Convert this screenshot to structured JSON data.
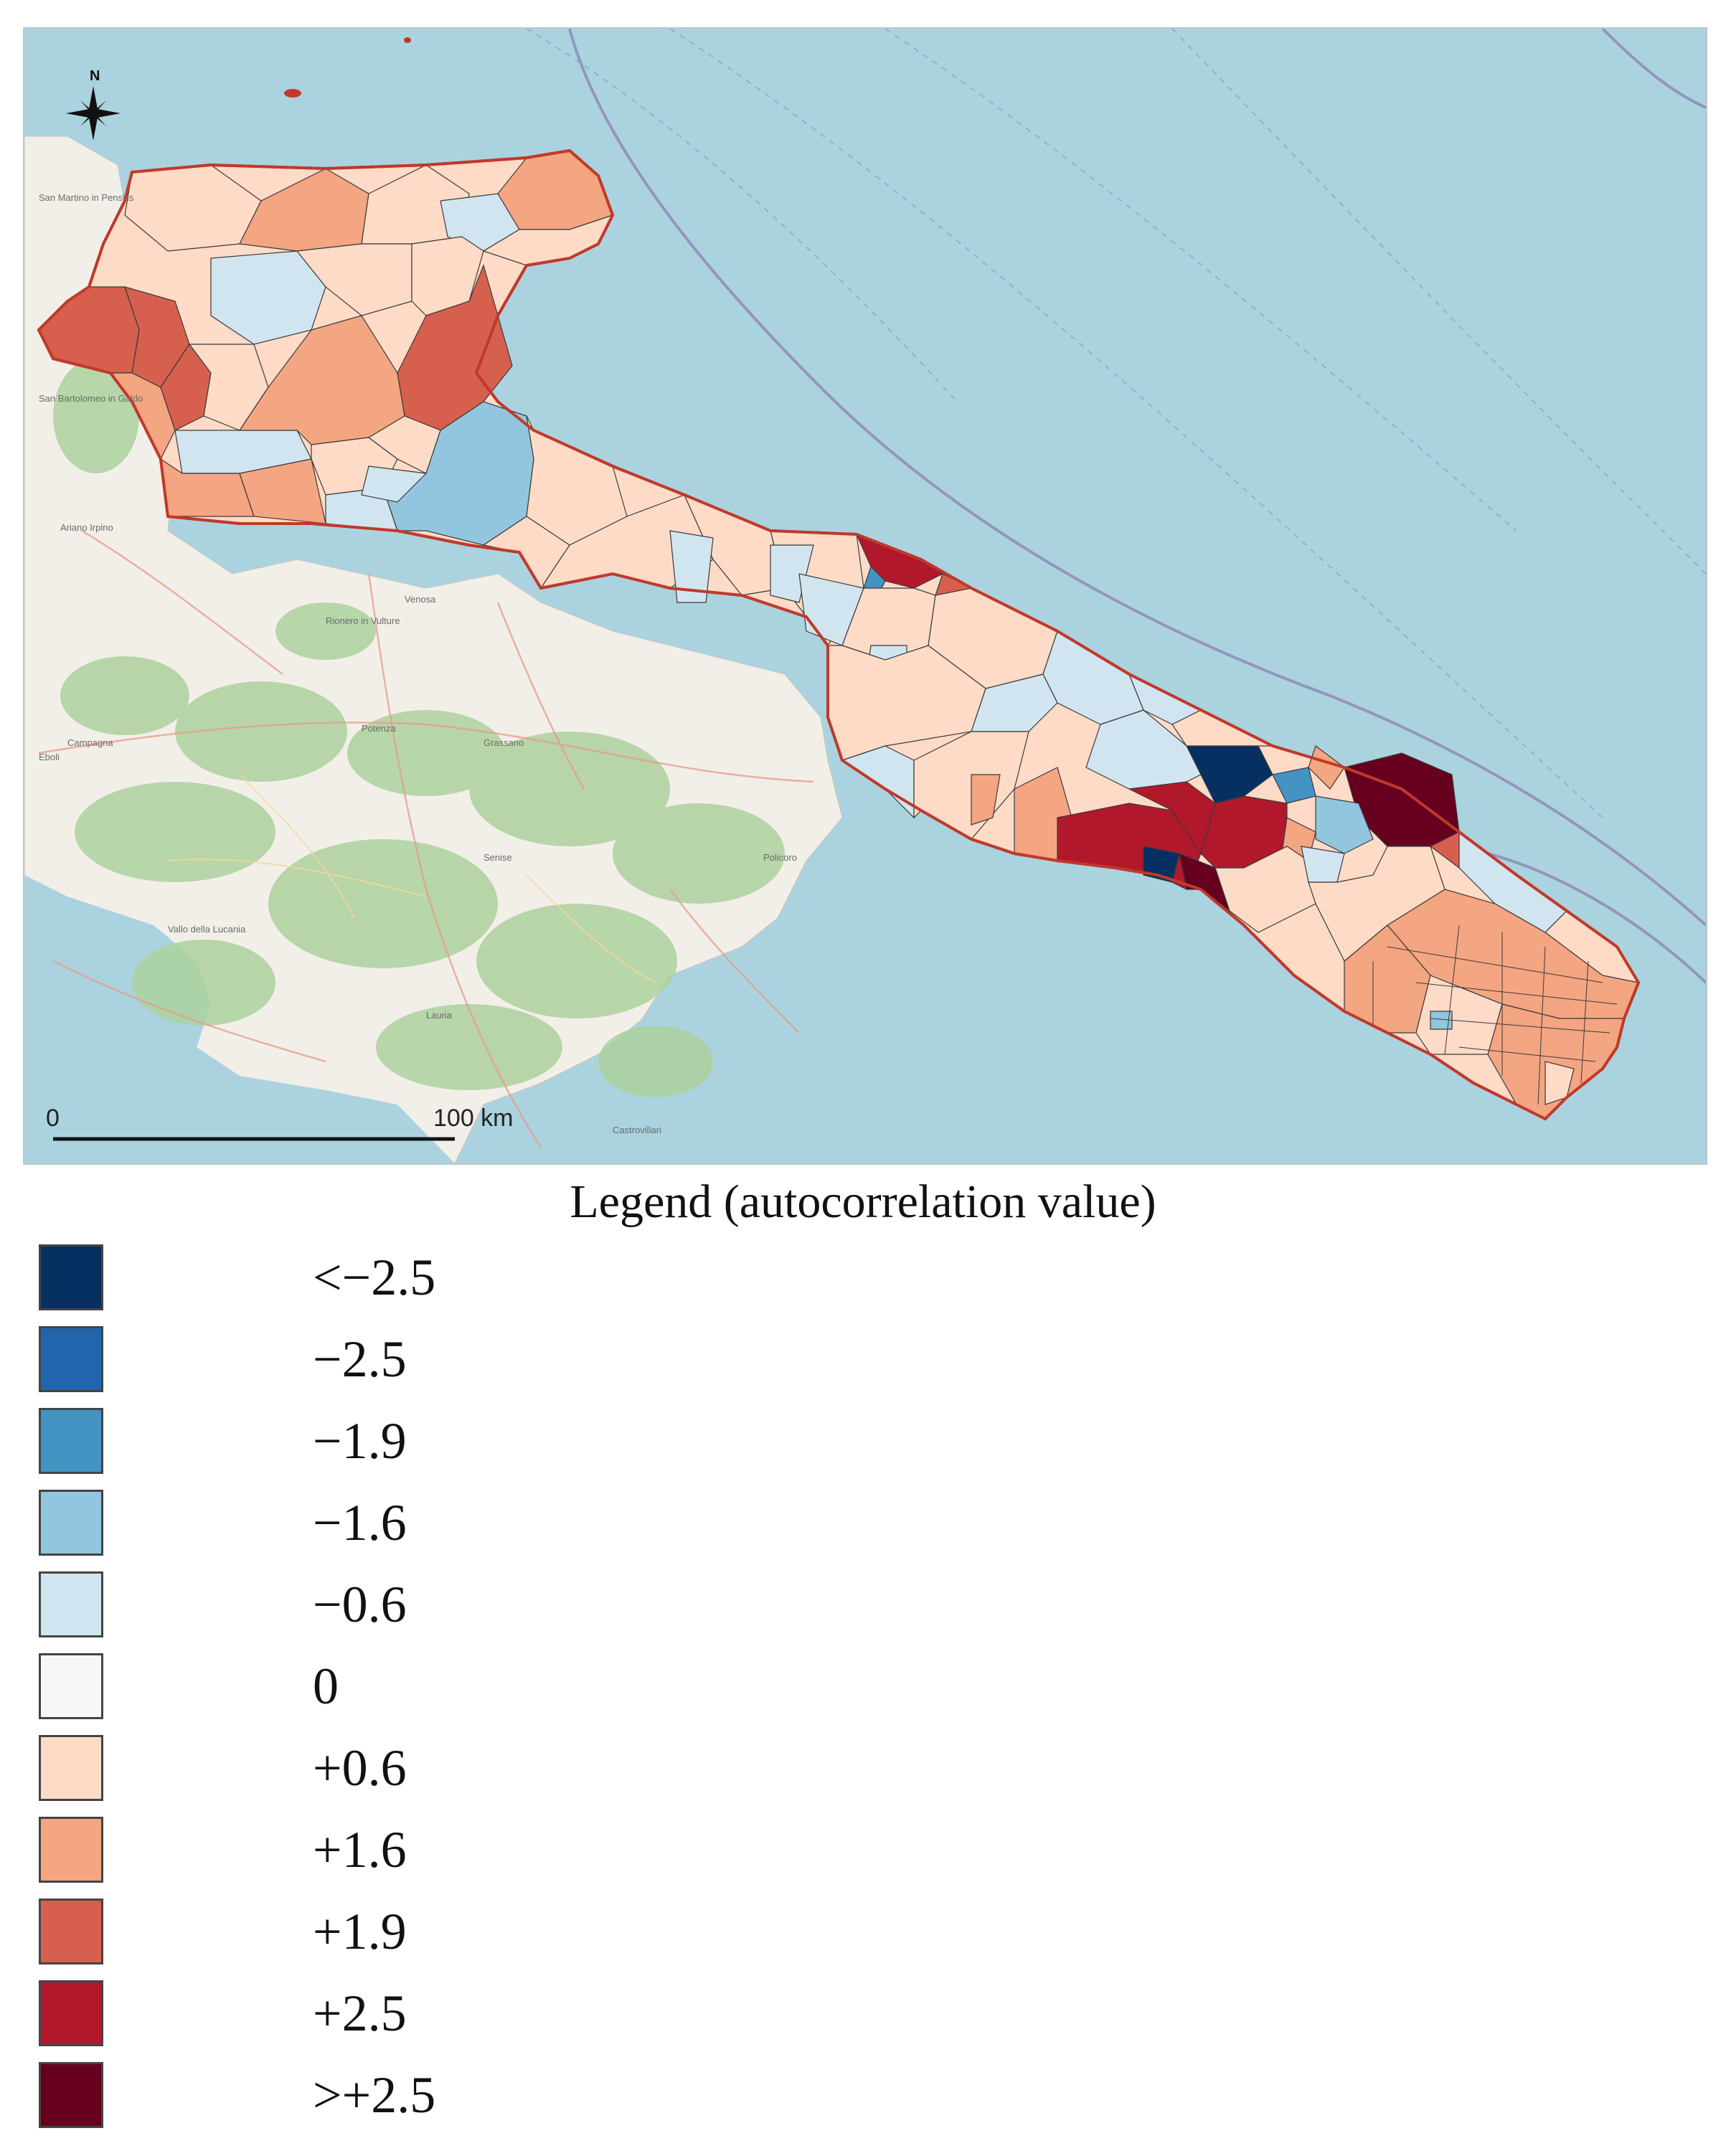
{
  "map": {
    "compass_label": "N",
    "scale_bar": {
      "start_label": "0",
      "end_label": "100 km"
    },
    "place_labels": [
      "San Martino in Pensilis",
      "San Bartolomeo in Galdo",
      "Ariano Irpino",
      "Venosa",
      "Rionero in Vulture",
      "Potenza",
      "Campagna",
      "Eboli",
      "Grassano",
      "Senise",
      "Lauria",
      "Vallo della Lucania",
      "Policoro",
      "Castrovillari"
    ],
    "colors": {
      "sea": "#aad3df",
      "land": "#f2efe9",
      "forest": "#add19e",
      "region_border": "#c0392b",
      "municipality_border": "#3a3a3a"
    }
  },
  "legend": {
    "title": "Legend (autocorrelation value)",
    "classes": [
      {
        "label": "<−2.5",
        "color": "#053061"
      },
      {
        "label": "−2.5",
        "color": "#2166ac"
      },
      {
        "label": "−1.9",
        "color": "#4393c3"
      },
      {
        "label": "−1.6",
        "color": "#92c5de"
      },
      {
        "label": "−0.6",
        "color": "#d1e5f0"
      },
      {
        "label": "0",
        "color": "#f7f7f7"
      },
      {
        "label": "+0.6",
        "color": "#fddbc7"
      },
      {
        "label": "+1.6",
        "color": "#f4a582"
      },
      {
        "label": "+1.9",
        "color": "#d6604d"
      },
      {
        "label": "+2.5",
        "color": "#b2182b"
      },
      {
        "label": ">+2.5",
        "color": "#67001f"
      }
    ]
  }
}
